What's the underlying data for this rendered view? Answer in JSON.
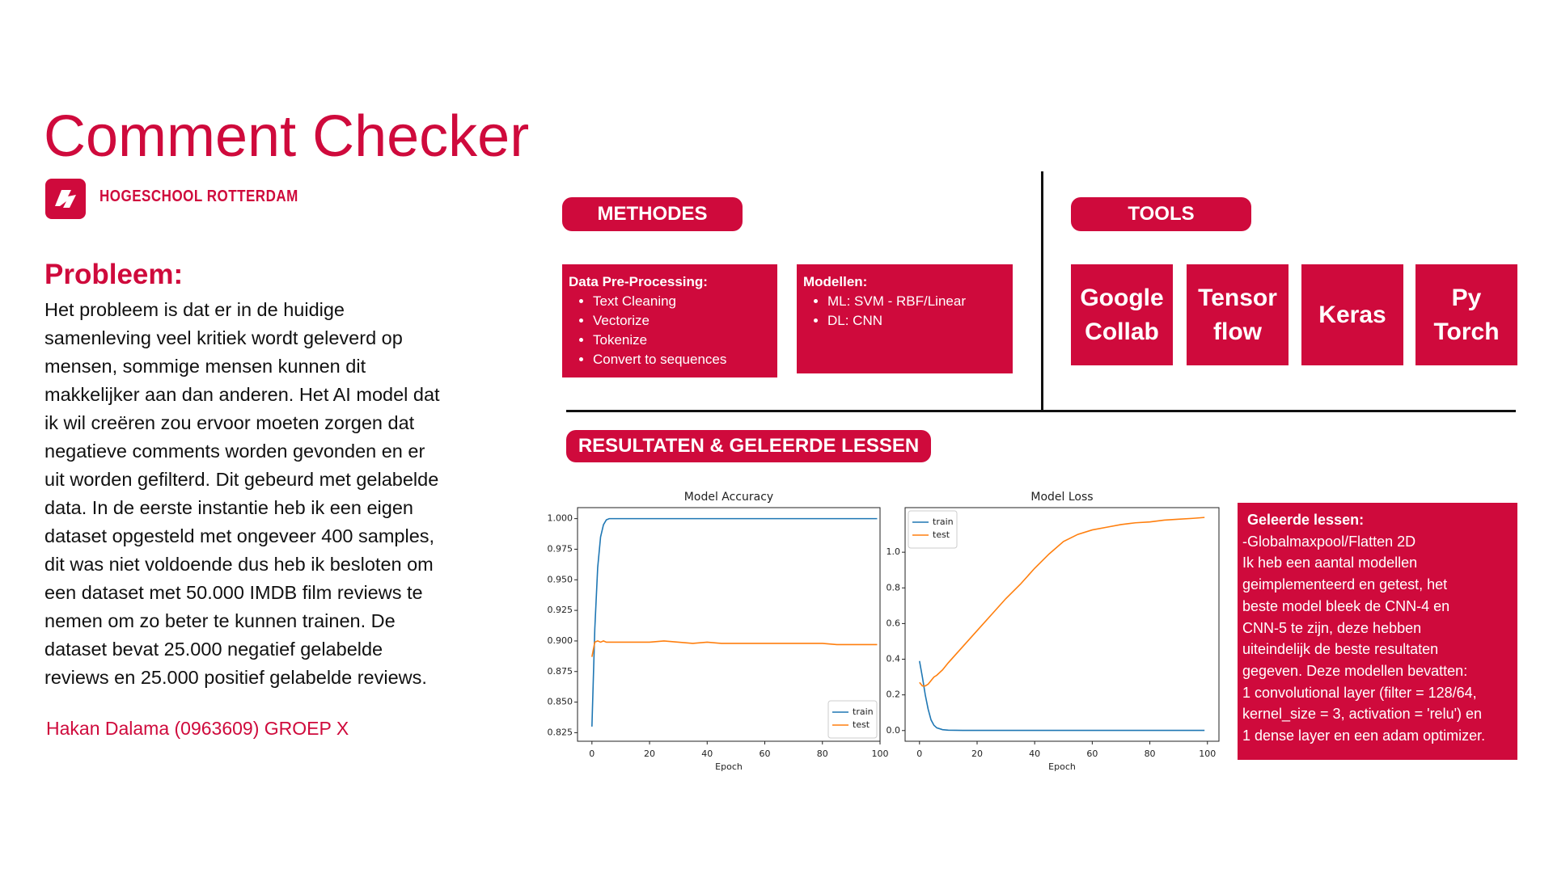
{
  "header": {
    "title": "Comment Checker",
    "institution": "HOGESCHOOL ROTTERDAM"
  },
  "problem": {
    "heading": "Probleem:",
    "lines": [
      "Het probleem is dat er in de huidige",
      "samenleving veel kritiek wordt geleverd op",
      "mensen, sommige mensen kunnen dit",
      "makkelijker aan dan anderen. Het AI model dat",
      "ik wil creëren zou ervoor moeten zorgen dat",
      "negatieve comments worden gevonden en er",
      "uit worden gefilterd. Dit gebeurd met gelabelde",
      "data. In de eerste instantie heb ik een eigen",
      "dataset opgesteld met ongeveer 400 samples,",
      "dit was niet voldoende dus heb ik besloten om",
      "een dataset met 50.000 IMDB film reviews te",
      "nemen om zo beter te kunnen trainen. De",
      "dataset bevat 25.000 negatief gelabelde",
      "reviews en 25.000 positief gelabelde reviews."
    ]
  },
  "author": "Hakan Dalama (0963609) GROEP X",
  "methods": {
    "label": "METHODES",
    "boxes": [
      {
        "heading": "Data Pre-Processing:",
        "items": [
          "Text Cleaning",
          "Vectorize",
          "Tokenize",
          "Convert to sequences"
        ]
      },
      {
        "heading": "Modellen:",
        "items": [
          "ML: SVM - RBF/Linear",
          "DL: CNN"
        ]
      }
    ]
  },
  "tools": {
    "label": "TOOLS",
    "items": [
      [
        "Google",
        "Collab"
      ],
      [
        "Tensor",
        "flow"
      ],
      [
        "Keras"
      ],
      [
        "Py",
        "Torch"
      ]
    ]
  },
  "results": {
    "label": "RESULTATEN & GELEERDE LESSEN"
  },
  "lessons": {
    "heading": "Geleerde lessen:",
    "lines": [
      "-Globalmaxpool/Flatten 2D",
      "Ik heb een aantal modellen",
      "geimplementeerd en getest, het",
      "beste model bleek de CNN-4 en",
      "CNN-5 te zijn, deze hebben",
      "uiteindelijk de beste resultaten",
      "gegeven. Deze modellen bevatten:",
      "1 convolutional layer (filter = 128/64,",
      "kernel_size = 3, activation = 'relu') en",
      "1 dense layer en een adam optimizer."
    ]
  },
  "chart_data": [
    {
      "type": "line",
      "title": "Model Accuracy",
      "x_label": "Epoch",
      "x": [
        0,
        1,
        2,
        3,
        4,
        5,
        6,
        8,
        10,
        15,
        20,
        25,
        30,
        35,
        40,
        45,
        50,
        55,
        60,
        65,
        70,
        75,
        80,
        85,
        90,
        95,
        99
      ],
      "series": [
        {
          "name": "train",
          "color": "#1f77b4",
          "values": [
            0.83,
            0.91,
            0.96,
            0.985,
            0.995,
            0.999,
            1.0,
            1.0,
            1.0,
            1.0,
            1.0,
            1.0,
            1.0,
            1.0,
            1.0,
            1.0,
            1.0,
            1.0,
            1.0,
            1.0,
            1.0,
            1.0,
            1.0,
            1.0,
            1.0,
            1.0,
            1.0
          ]
        },
        {
          "name": "test",
          "color": "#ff7f0e",
          "values": [
            0.887,
            0.899,
            0.9,
            0.899,
            0.9,
            0.899,
            0.899,
            0.899,
            0.899,
            0.899,
            0.899,
            0.9,
            0.899,
            0.898,
            0.899,
            0.898,
            0.898,
            0.898,
            0.898,
            0.898,
            0.898,
            0.898,
            0.898,
            0.897,
            0.897,
            0.897,
            0.897
          ]
        }
      ],
      "xlim": [
        -5,
        100
      ],
      "xticks": [
        0,
        20,
        40,
        60,
        80,
        100
      ],
      "ylim": [
        0.818,
        1.009
      ],
      "yticks": [
        0.825,
        {
          "value": 0.85,
          "label": "0.850"
        },
        0.875,
        {
          "value": 0.9,
          "label": "0.900"
        },
        0.925,
        {
          "value": 0.95,
          "label": "0.950"
        },
        0.975,
        {
          "value": 1.0,
          "label": "1.000"
        }
      ],
      "legend": "lower right"
    },
    {
      "type": "line",
      "title": "Model Loss",
      "x_label": "Epoch",
      "x": [
        0,
        1,
        2,
        3,
        4,
        5,
        6,
        8,
        10,
        15,
        20,
        25,
        30,
        35,
        40,
        45,
        50,
        55,
        60,
        65,
        70,
        75,
        80,
        85,
        90,
        95,
        99
      ],
      "series": [
        {
          "name": "train",
          "color": "#1f77b4",
          "values": [
            0.39,
            0.3,
            0.2,
            0.12,
            0.06,
            0.03,
            0.015,
            0.005,
            0.002,
            0.001,
            0.001,
            0.001,
            0.001,
            0.001,
            0.001,
            0.001,
            0.001,
            0.001,
            0.001,
            0.001,
            0.001,
            0.001,
            0.001,
            0.001,
            0.001,
            0.001,
            0.001
          ]
        },
        {
          "name": "test",
          "color": "#ff7f0e",
          "values": [
            0.27,
            0.25,
            0.25,
            0.26,
            0.28,
            0.3,
            0.31,
            0.34,
            0.38,
            0.47,
            0.56,
            0.65,
            0.74,
            0.82,
            0.91,
            0.99,
            1.06,
            1.1,
            1.125,
            1.14,
            1.155,
            1.165,
            1.17,
            1.18,
            1.185,
            1.19,
            1.195
          ]
        }
      ],
      "xlim": [
        -5,
        104
      ],
      "xticks": [
        0,
        20,
        40,
        60,
        80,
        100
      ],
      "ylim": [
        -0.06,
        1.25
      ],
      "yticks": [
        {
          "value": 0,
          "label": "0.0"
        },
        0.2,
        0.4,
        0.6,
        0.8,
        {
          "value": 1,
          "label": "1.0"
        },
        0.2
      ],
      "legend": "upper left"
    }
  ]
}
